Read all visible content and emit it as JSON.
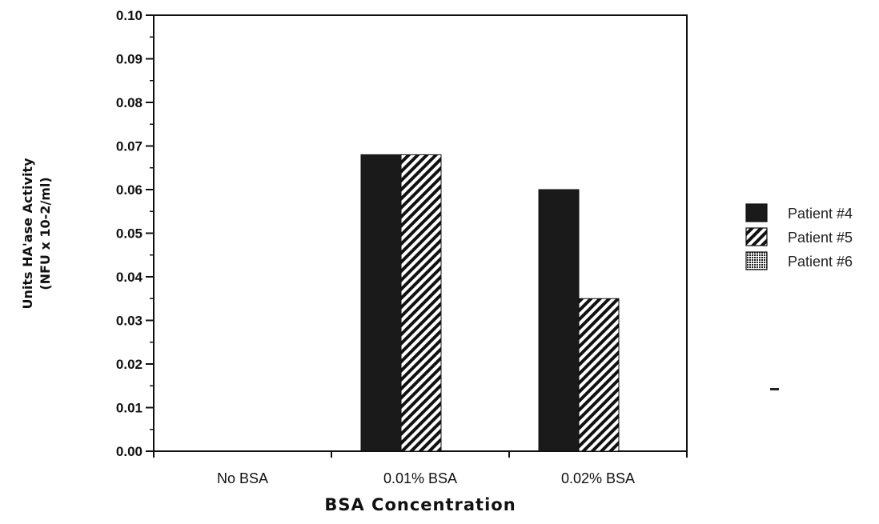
{
  "chart_data": {
    "type": "bar",
    "title": "",
    "xlabel": "BSA   Concentration",
    "ylabel": [
      "Units  HA'ase  Activity",
      "(NFU  x  10-2/ml)"
    ],
    "ylim": [
      0,
      0.1
    ],
    "yticks": [
      "0.00",
      "0.01",
      "0.02",
      "0.03",
      "0.04",
      "0.05",
      "0.06",
      "0.07",
      "0.08",
      "0.09",
      "0.10"
    ],
    "categories": [
      "No BSA",
      "0.01%  BSA",
      "0.02%  BSA"
    ],
    "series": [
      {
        "name": "Patient #4",
        "values": [
          0,
          0.068,
          0.06
        ],
        "pattern": "solid"
      },
      {
        "name": "Patient #5",
        "values": [
          0,
          0.068,
          0.035
        ],
        "pattern": "hatch"
      },
      {
        "name": "Patient #6",
        "values": [
          0,
          0.0,
          0
        ],
        "pattern": "dots"
      }
    ],
    "legend": "right",
    "grid": false
  }
}
